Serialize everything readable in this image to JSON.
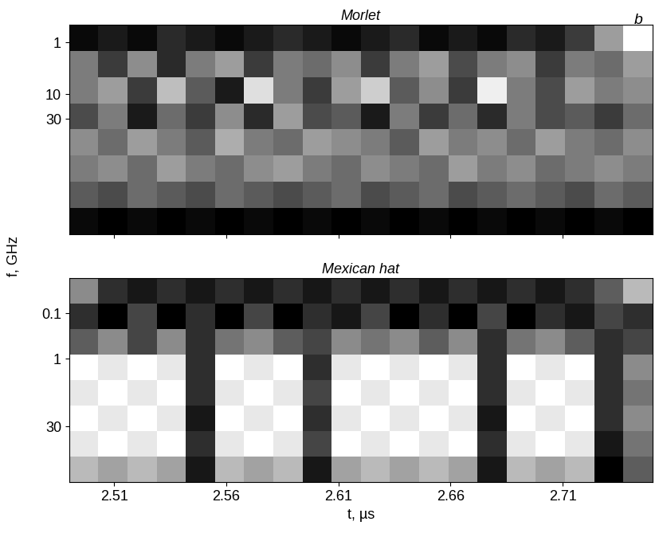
{
  "chart_data": [
    {
      "type": "heatmap",
      "title": "Morlet",
      "log": "y",
      "tick_labels": "y",
      "xlim": [
        2.49,
        2.75
      ],
      "xticks": [
        2.51,
        2.56,
        2.61,
        2.66,
        2.71
      ],
      "ylim": [
        0.45,
        5000
      ],
      "yticks": [
        1,
        10,
        30
      ],
      "cells": [
        [
          0.15,
          0.2,
          0.15,
          0.25,
          0.2,
          0.15,
          0.2,
          0.25,
          0.2,
          0.15,
          0.2,
          0.25,
          0.15,
          0.2,
          0.15,
          0.25,
          0.2,
          0.3,
          0.6,
          0.9
        ],
        [
          0.5,
          0.3,
          0.55,
          0.25,
          0.5,
          0.6,
          0.3,
          0.5,
          0.45,
          0.55,
          0.3,
          0.5,
          0.6,
          0.35,
          0.5,
          0.55,
          0.3,
          0.5,
          0.45,
          0.6
        ],
        [
          0.5,
          0.6,
          0.3,
          0.7,
          0.4,
          0.2,
          0.8,
          0.5,
          0.3,
          0.6,
          0.75,
          0.4,
          0.55,
          0.3,
          0.85,
          0.5,
          0.35,
          0.6,
          0.5,
          0.55
        ],
        [
          0.35,
          0.5,
          0.2,
          0.45,
          0.3,
          0.55,
          0.25,
          0.6,
          0.35,
          0.4,
          0.2,
          0.5,
          0.3,
          0.45,
          0.25,
          0.5,
          0.35,
          0.4,
          0.3,
          0.45
        ],
        [
          0.55,
          0.45,
          0.6,
          0.5,
          0.4,
          0.65,
          0.5,
          0.45,
          0.6,
          0.55,
          0.5,
          0.4,
          0.6,
          0.5,
          0.55,
          0.45,
          0.6,
          0.5,
          0.45,
          0.55
        ],
        [
          0.5,
          0.55,
          0.45,
          0.6,
          0.5,
          0.45,
          0.55,
          0.6,
          0.5,
          0.45,
          0.55,
          0.5,
          0.45,
          0.6,
          0.5,
          0.55,
          0.45,
          0.5,
          0.55,
          0.5
        ],
        [
          0.4,
          0.35,
          0.45,
          0.4,
          0.35,
          0.45,
          0.4,
          0.35,
          0.4,
          0.45,
          0.35,
          0.4,
          0.45,
          0.35,
          0.4,
          0.45,
          0.4,
          0.35,
          0.45,
          0.4
        ],
        [
          0.15,
          0.12,
          0.15,
          0.12,
          0.15,
          0.12,
          0.15,
          0.12,
          0.15,
          0.12,
          0.15,
          0.12,
          0.15,
          0.12,
          0.15,
          0.12,
          0.15,
          0.12,
          0.15,
          0.12
        ]
      ]
    },
    {
      "type": "heatmap",
      "title": "Mexican hat",
      "log": "y",
      "x_label": "t, µs",
      "xlim": [
        2.49,
        2.75
      ],
      "xticks": [
        2.51,
        2.56,
        2.61,
        2.66,
        2.71
      ],
      "ylim": [
        0.017,
        500
      ],
      "yticks": [
        0.1,
        1,
        30
      ],
      "cells": [
        [
          0.5,
          0.3,
          0.25,
          0.3,
          0.25,
          0.3,
          0.25,
          0.3,
          0.25,
          0.3,
          0.25,
          0.3,
          0.25,
          0.3,
          0.25,
          0.3,
          0.25,
          0.3,
          0.4,
          0.6
        ],
        [
          0.3,
          0.2,
          0.35,
          0.2,
          0.3,
          0.2,
          0.35,
          0.2,
          0.3,
          0.25,
          0.35,
          0.2,
          0.3,
          0.2,
          0.35,
          0.2,
          0.3,
          0.25,
          0.35,
          0.3
        ],
        [
          0.4,
          0.5,
          0.35,
          0.5,
          0.3,
          0.45,
          0.5,
          0.4,
          0.35,
          0.5,
          0.45,
          0.5,
          0.4,
          0.5,
          0.3,
          0.45,
          0.5,
          0.4,
          0.3,
          0.35
        ],
        [
          0.75,
          0.7,
          0.75,
          0.7,
          0.3,
          0.75,
          0.7,
          0.75,
          0.3,
          0.7,
          0.75,
          0.7,
          0.75,
          0.7,
          0.3,
          0.75,
          0.7,
          0.75,
          0.3,
          0.5
        ],
        [
          0.7,
          0.75,
          0.7,
          0.75,
          0.3,
          0.7,
          0.75,
          0.7,
          0.35,
          0.75,
          0.7,
          0.75,
          0.7,
          0.75,
          0.3,
          0.7,
          0.75,
          0.7,
          0.3,
          0.45
        ],
        [
          0.75,
          0.7,
          0.75,
          0.7,
          0.25,
          0.75,
          0.7,
          0.75,
          0.3,
          0.7,
          0.75,
          0.7,
          0.75,
          0.7,
          0.25,
          0.75,
          0.7,
          0.75,
          0.3,
          0.5
        ],
        [
          0.7,
          0.75,
          0.7,
          0.75,
          0.3,
          0.7,
          0.75,
          0.7,
          0.35,
          0.75,
          0.7,
          0.75,
          0.7,
          0.75,
          0.3,
          0.7,
          0.75,
          0.7,
          0.25,
          0.45
        ],
        [
          0.6,
          0.55,
          0.6,
          0.55,
          0.25,
          0.6,
          0.55,
          0.6,
          0.25,
          0.55,
          0.6,
          0.55,
          0.6,
          0.55,
          0.25,
          0.6,
          0.55,
          0.6,
          0.2,
          0.4
        ]
      ]
    }
  ],
  "y_label": "f, GHz",
  "panel_label": "b"
}
